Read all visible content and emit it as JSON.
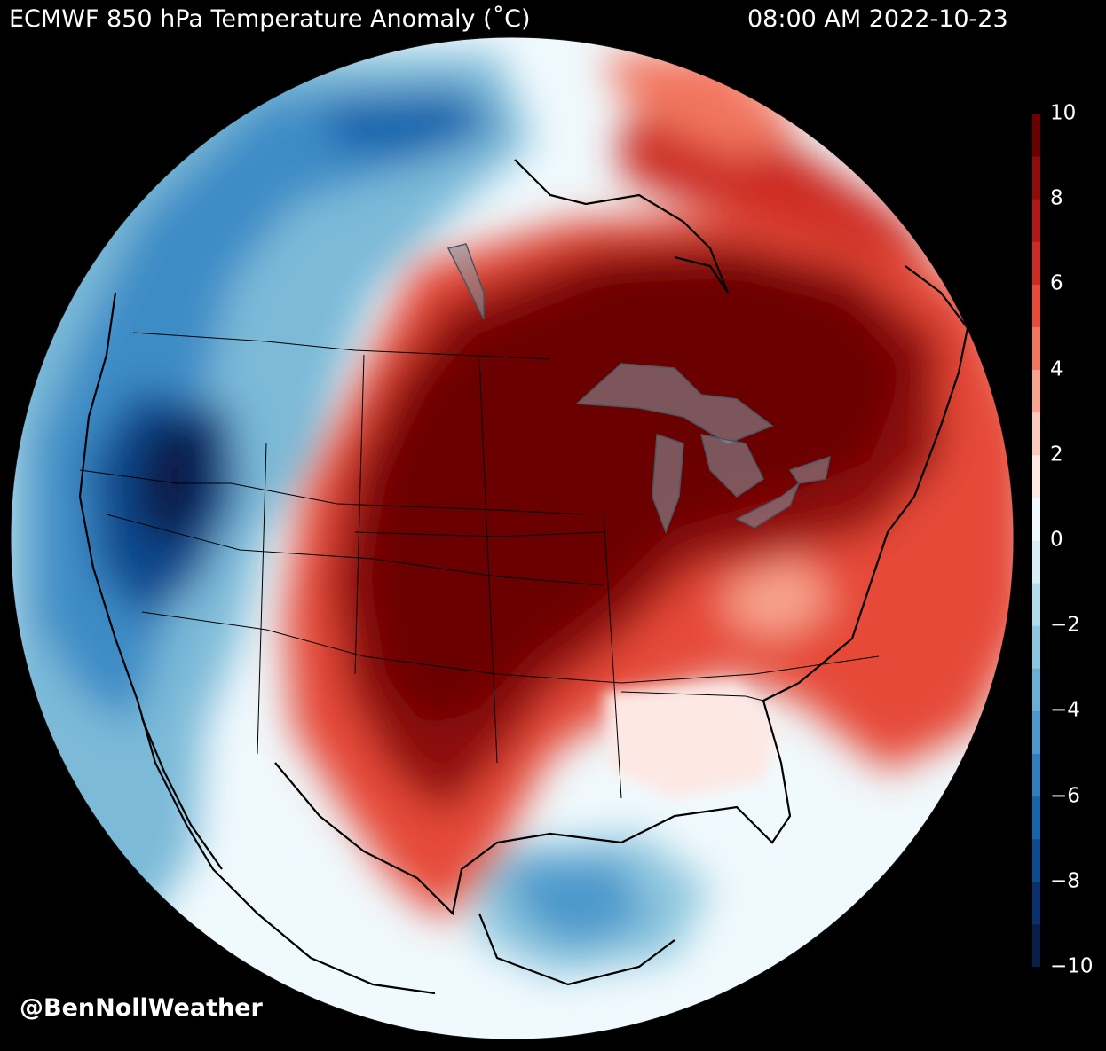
{
  "header": {
    "title": "ECMWF 850 hPa Temperature Anomaly (˚C)",
    "timestamp": "08:00 AM 2022-10-23"
  },
  "colorbar": {
    "ticks": [
      "10",
      "8",
      "6",
      "4",
      "2",
      "0",
      "−2",
      "−4",
      "−6",
      "−8",
      "−10"
    ],
    "tick_values": [
      10,
      8,
      6,
      4,
      2,
      0,
      -2,
      -4,
      -6,
      -8,
      -10
    ],
    "range": [
      -10,
      10
    ],
    "levels": 20,
    "colors": [
      "#0a1e4a",
      "#0c2f6e",
      "#0d4a8f",
      "#1565ad",
      "#2f7fc0",
      "#4c98cc",
      "#6aafd6",
      "#8dc6de",
      "#b3dcea",
      "#d7eef6",
      "#f0f9fd",
      "#fde8e4",
      "#fbc9bd",
      "#f8a48f",
      "#f2765f",
      "#e64a38",
      "#cc2a22",
      "#b01818",
      "#8f0c0c",
      "#6a0000"
    ]
  },
  "credit": "@BenNollWeather",
  "map": {
    "projection": "orthographic",
    "region": "North America",
    "variable": "850 hPa temperature anomaly",
    "units": "˚C"
  }
}
